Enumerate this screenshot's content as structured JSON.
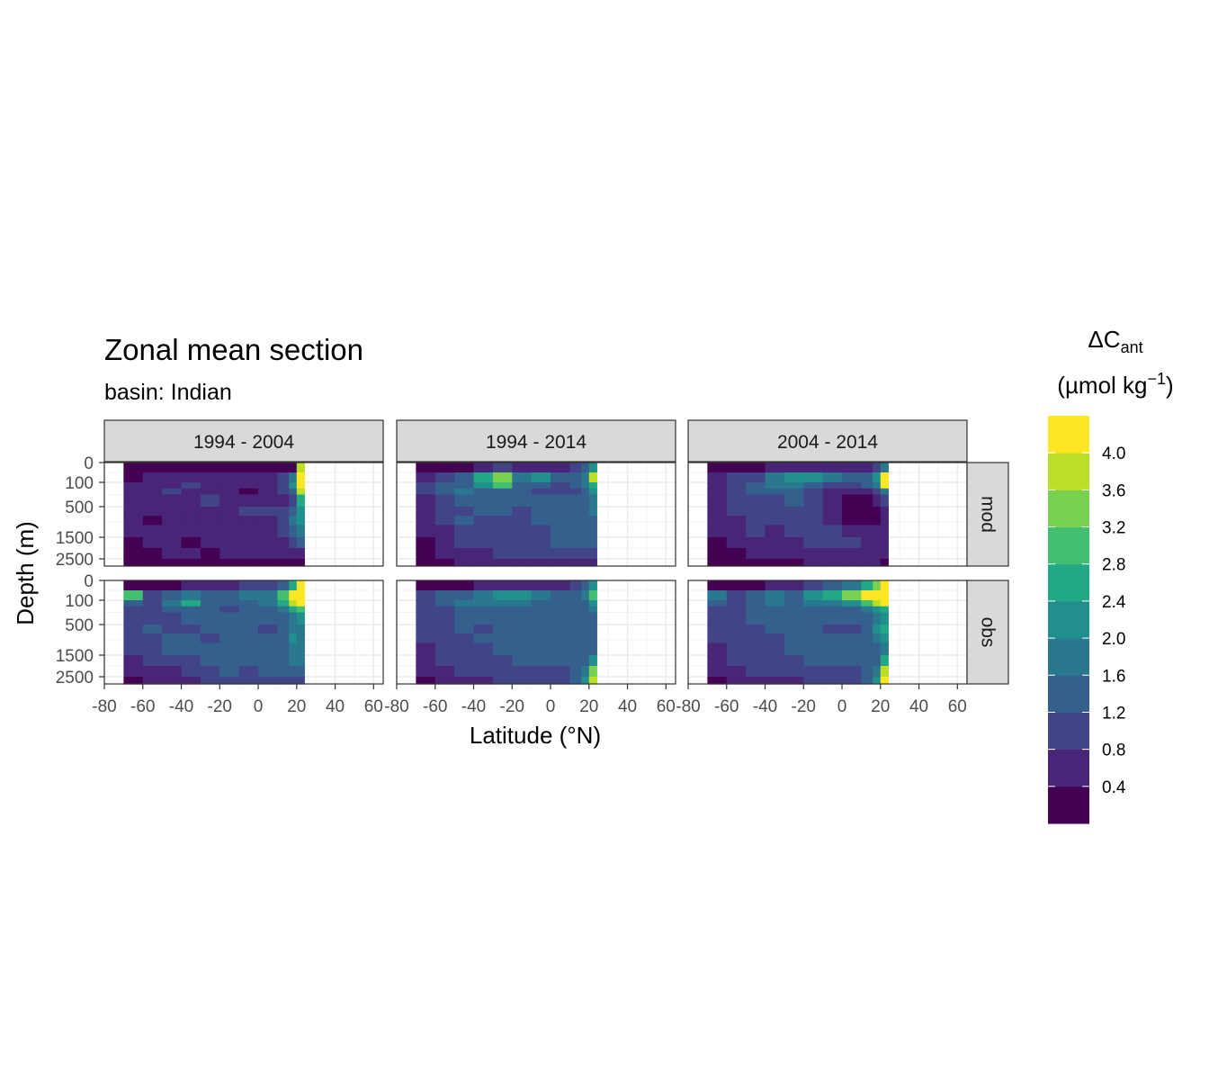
{
  "chart_data": {
    "type": "heatmap",
    "title": "Zonal mean section",
    "subtitle": "basin: Indian",
    "xlabel": "Latitude (°N)",
    "ylabel": "Depth (m)",
    "xlim": [
      -80,
      65
    ],
    "x_ticks": [
      -80,
      -60,
      -40,
      -20,
      0,
      20,
      40,
      60
    ],
    "y_ticks": [
      0,
      100,
      500,
      1500,
      2500
    ],
    "y_scale": "reversed, non-linear (depth)",
    "column_facets": [
      "1994 - 2004",
      "1994 - 2014",
      "2004 - 2014"
    ],
    "row_facets": [
      "mod",
      "obs"
    ],
    "data_lat_range": [
      -70,
      24
    ],
    "grid": true,
    "legend": {
      "position": "right",
      "title_main": "ΔC",
      "title_sub": "ant",
      "title_units": "(µmol kg",
      "title_sup": "−1",
      "title_close": ")",
      "breaks": [
        0.4,
        0.8,
        1.2,
        1.6,
        2.0,
        2.4,
        2.8,
        3.2,
        3.6,
        4.0
      ],
      "break_labels": [
        "0.4",
        "0.8",
        "1.2",
        "1.6",
        "2.0",
        "2.4",
        "2.8",
        "3.2",
        "3.6",
        "4.0"
      ],
      "colors": [
        "#440154",
        "#482576",
        "#414487",
        "#35608D",
        "#2A788E",
        "#21908C",
        "#22A884",
        "#43BF71",
        "#7AD151",
        "#BBDF27",
        "#FDE725"
      ]
    },
    "panels": [
      {
        "column": "1994 - 2004",
        "row": "mod",
        "pattern": "low values (0–0.8) throughout, high values (>4) in upper 500 m near 20–24°N"
      },
      {
        "column": "1994 - 2014",
        "row": "mod",
        "pattern": "0.8–2.4 across upper ocean, maxima ~3.6 near -40°N and 20°N surface"
      },
      {
        "column": "2004 - 2014",
        "row": "mod",
        "pattern": "0.4–2.0, surface maximum >4 at 20°N, minimum block 0–20°N below 500 m"
      },
      {
        "column": "1994 - 2004",
        "row": "obs",
        "pattern": "surface maximum >4 north of 10°N, intermediate 1–2 elsewhere"
      },
      {
        "column": "1994 - 2014",
        "row": "obs",
        "pattern": "0.8–2.0 throughout, maxima near 20°N at surface and at depth"
      },
      {
        "column": "2004 - 2014",
        "row": "obs",
        "pattern": "surface maximum >4 north of -10°N, 1–2 below, high values near 20°N at 2500 m"
      }
    ]
  }
}
